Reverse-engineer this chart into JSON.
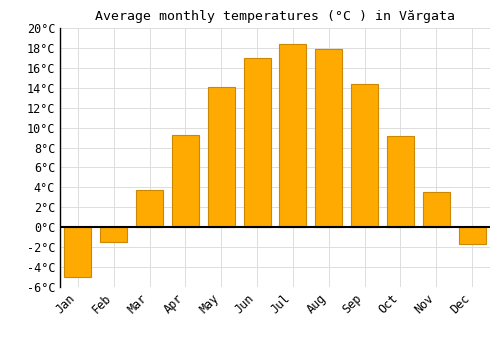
{
  "title": "Average monthly temperatures (°C ) in Vărgata",
  "months": [
    "Jan",
    "Feb",
    "Mar",
    "Apr",
    "May",
    "Jun",
    "Jul",
    "Aug",
    "Sep",
    "Oct",
    "Nov",
    "Dec"
  ],
  "values": [
    -5.0,
    -1.5,
    3.7,
    9.3,
    14.1,
    17.0,
    18.4,
    17.9,
    14.4,
    9.2,
    3.5,
    -1.7
  ],
  "bar_color": "#FFAA00",
  "bar_edge_color": "#CC8800",
  "background_color": "#FFFFFF",
  "grid_color": "#DDDDDD",
  "ylim": [
    -6,
    20
  ],
  "yticks": [
    -6,
    -4,
    -2,
    0,
    2,
    4,
    6,
    8,
    10,
    12,
    14,
    16,
    18,
    20
  ],
  "title_fontsize": 9.5,
  "tick_fontsize": 8.5,
  "zero_line_color": "#000000",
  "bar_width": 0.75
}
